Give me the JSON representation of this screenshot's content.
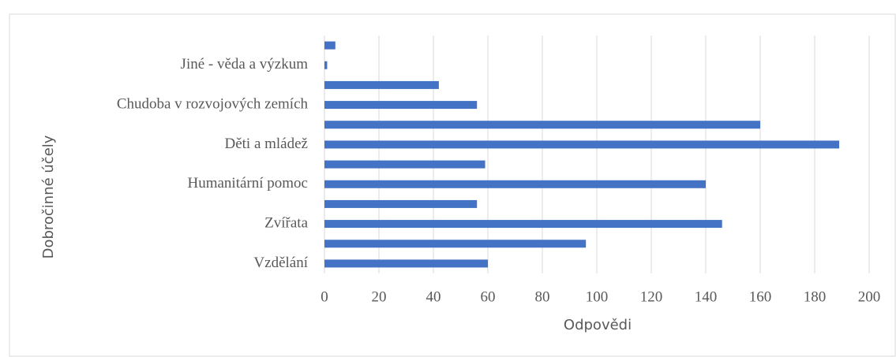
{
  "chart_data": {
    "type": "barh",
    "y_label": "Dobročinné účely",
    "x_label": "Odpovědi",
    "categories": [
      "Vzdělání",
      null,
      "Zvířata",
      null,
      "Humanitární pomoc",
      null,
      "Děti a mládež",
      null,
      "Chudoba v rozvojových zemích",
      null,
      "Jiné - věda a výzkum",
      null
    ],
    "values": [
      60,
      96,
      146,
      56,
      140,
      59,
      189,
      160,
      56,
      42,
      1,
      4
    ],
    "color": "#4472c4",
    "xlim": [
      0,
      200
    ],
    "xticks": [
      0,
      20,
      40,
      60,
      80,
      100,
      120,
      140,
      160,
      180,
      200
    ],
    "grid": true
  }
}
